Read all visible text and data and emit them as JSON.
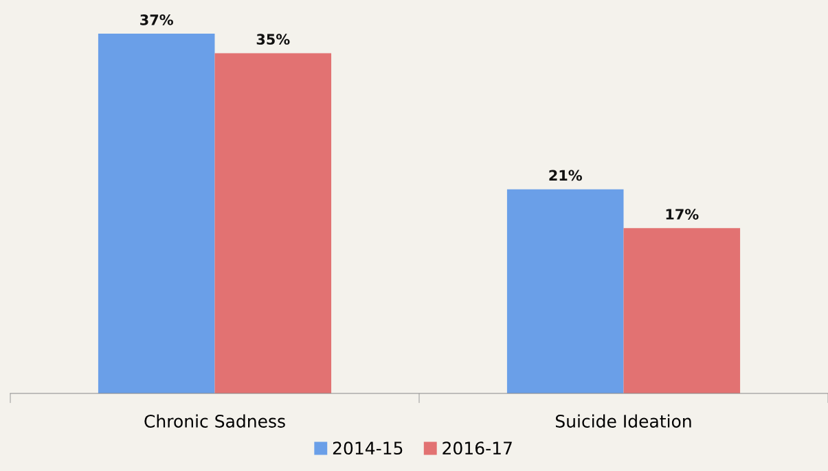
{
  "chart_data": {
    "type": "bar",
    "categories": [
      "Chronic Sadness",
      "Suicide Ideation"
    ],
    "series": [
      {
        "name": "2014-15",
        "color": "#6a9fe8",
        "values": [
          37,
          21
        ],
        "value_labels": [
          "37%",
          "21%"
        ]
      },
      {
        "name": "2016-17",
        "color": "#e27272",
        "values": [
          35,
          17
        ],
        "value_labels": [
          "35%",
          "17%"
        ]
      }
    ],
    "legend": "bottom",
    "grid": false
  }
}
